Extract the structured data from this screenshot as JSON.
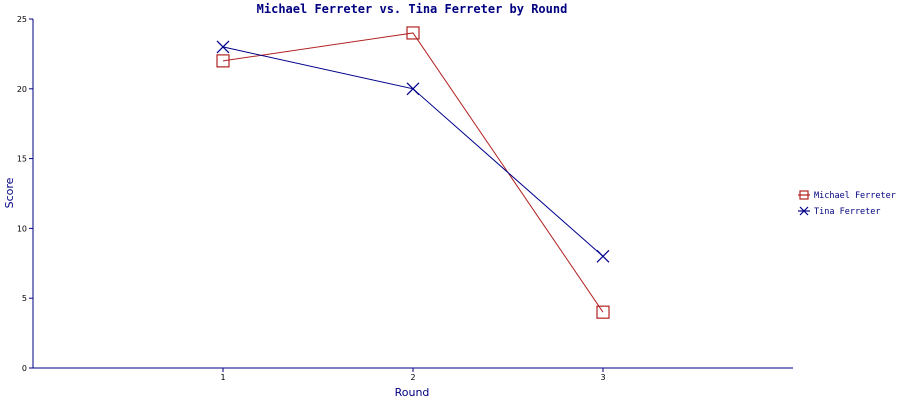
{
  "chart_data": {
    "type": "line",
    "title": "Michael Ferreter vs. Tina Ferreter by Round",
    "xlabel": "Round",
    "ylabel": "Score",
    "categories": [
      "1",
      "2",
      "3"
    ],
    "ylim": [
      0,
      25
    ],
    "yticks": [
      "0",
      "5",
      "10",
      "15",
      "20",
      "25"
    ],
    "legend_position": "right",
    "grid": false,
    "series": [
      {
        "name": "Michael Ferreter",
        "values": [
          22,
          24,
          4
        ],
        "color": "#b22222",
        "marker": "square"
      },
      {
        "name": "Tina Ferreter",
        "values": [
          23,
          20,
          8
        ],
        "color": "#00008b",
        "marker": "x"
      }
    ],
    "axis_color": "#000080"
  }
}
